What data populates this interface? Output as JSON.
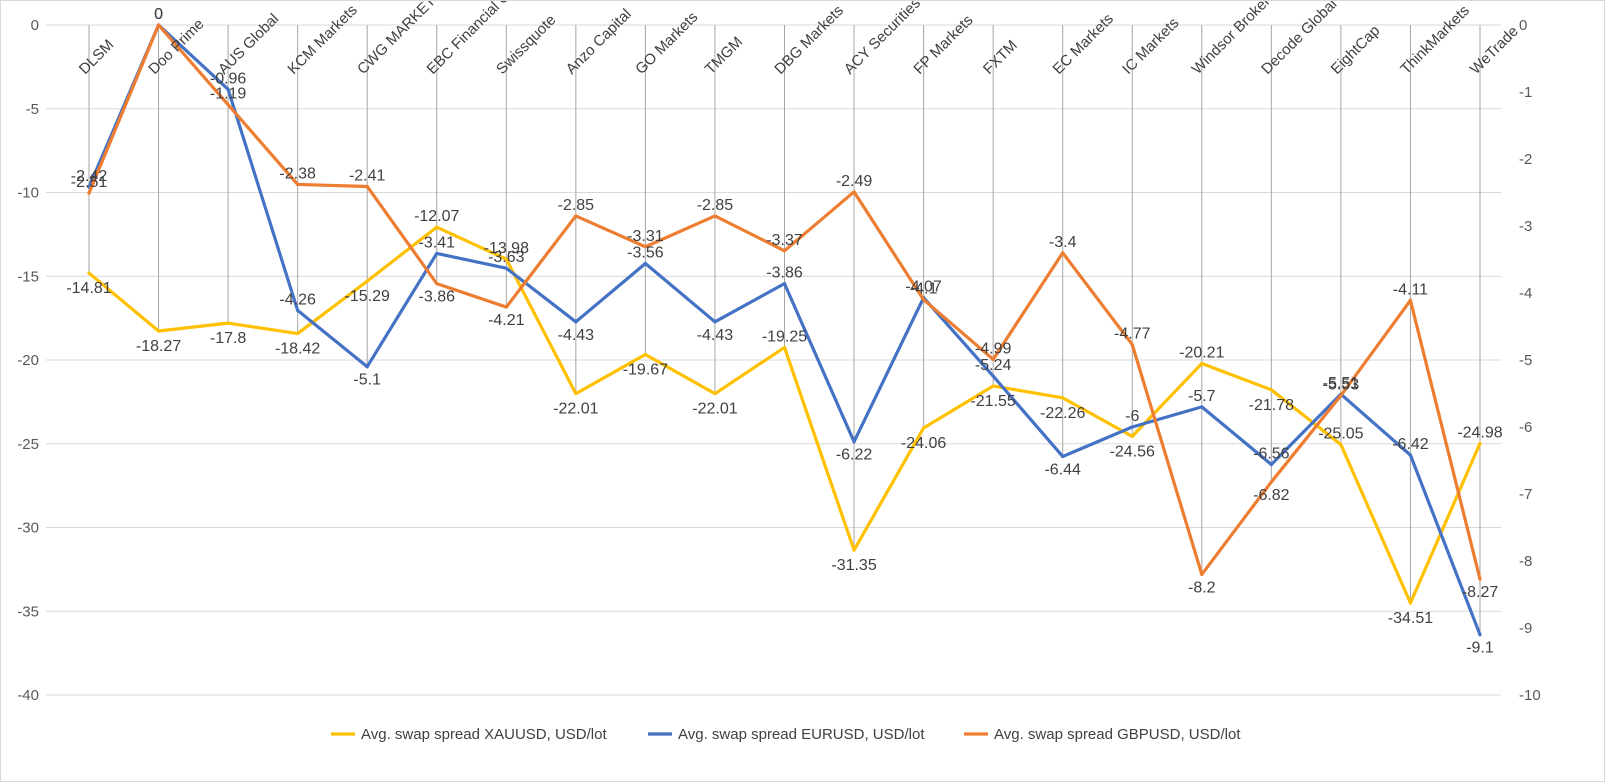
{
  "chart_data": {
    "type": "line",
    "title": "",
    "xlabel": "",
    "ylabel": "",
    "categories": [
      "DLSM",
      "Doo Prime",
      "AUS Global",
      "KCM Markets",
      "CWG MARKETS",
      "EBC Financial Group",
      "Swissquote",
      "Anzo Capital",
      "GO Markets",
      "TMGM",
      "DBG Markets",
      "ACY Securities",
      "FP Markets",
      "FXTM",
      "EC Markets",
      "IC Markets",
      "Windsor Brokers",
      "Decode Global",
      "EightCap",
      "ThinkMarkets",
      "WeTrade"
    ],
    "y_left": {
      "min": -40,
      "max": 0,
      "step": 5,
      "ticks": [
        "0",
        "-5",
        "-10",
        "-15",
        "-20",
        "-25",
        "-30",
        "-35",
        "-40"
      ]
    },
    "y_right": {
      "min": -10,
      "max": 0,
      "step": 1,
      "ticks": [
        "0",
        "-1",
        "-2",
        "-3",
        "-4",
        "-5",
        "-6",
        "-7",
        "-8",
        "-9",
        "-10"
      ]
    },
    "grid": true,
    "legend_position": "bottom",
    "series": [
      {
        "name": "Avg. swap spread XAUUSD, USD/lot",
        "axis": "left",
        "color": "#FFC000",
        "values": [
          -14.81,
          -18.27,
          -17.8,
          -18.42,
          -15.29,
          -12.07,
          -13.98,
          -22.01,
          -19.67,
          -22.01,
          -19.25,
          -31.35,
          -24.06,
          -21.55,
          -22.26,
          -24.56,
          -20.21,
          -21.78,
          -25.05,
          -34.51,
          -24.98
        ],
        "labels": [
          "-14.81",
          "-18.27",
          "-17.8",
          "-18.42",
          "-15.29",
          "-12.07",
          "-13.98",
          "-22.01",
          "-19.67",
          "-22.01",
          "-19.25",
          "-31.35",
          "-24.06",
          "-21.55",
          "-22.26",
          "-24.56",
          "-20.21",
          "-21.78",
          "-25.05",
          "-34.51",
          "-24.98"
        ]
      },
      {
        "name": "Avg. swap spread EURUSD, USD/lot",
        "axis": "right",
        "color": "#4472C4",
        "values": [
          -2.42,
          0,
          -0.96,
          -4.26,
          -5.1,
          -3.41,
          -3.63,
          -4.43,
          -3.56,
          -4.43,
          -3.86,
          -6.22,
          -4.07,
          -5.24,
          -6.44,
          -6,
          -5.7,
          -6.56,
          -5.51,
          -6.42,
          -9.1
        ],
        "labels": [
          "-2.42",
          "0",
          "-0.96",
          "-4.26",
          "-5.1",
          "-3.41",
          "-3.63",
          "-4.43",
          "-3.56",
          "-4.43",
          "-3.86",
          "-6.22",
          "-4.07",
          "-5.24",
          "-6.44",
          "-6",
          "-5.7",
          "-6.56",
          "-5.51",
          "-6.42",
          "-9.1"
        ]
      },
      {
        "name": "Avg. swap spread GBPUSD, USD/lot",
        "axis": "right",
        "color": "#ED7D31",
        "values": [
          -2.51,
          0,
          -1.19,
          -2.38,
          -2.41,
          -3.86,
          -4.21,
          -2.85,
          -3.31,
          -2.85,
          -3.37,
          -2.49,
          -4.1,
          -4.99,
          -3.4,
          -4.77,
          -8.2,
          -6.82,
          -5.53,
          -4.11,
          -8.27
        ],
        "labels": [
          "-2.51",
          "0",
          "-1.19",
          "-2.38",
          "-2.41",
          "-3.86",
          "-4.21",
          "-2.85",
          "-3.31",
          "-2.85",
          "-3.37",
          "-2.49",
          "-4.1",
          "-4.99",
          "-3.4",
          "-4.77",
          "-8.2",
          "-6.82",
          "-5.53",
          "-4.11",
          "-8.27"
        ]
      }
    ]
  }
}
